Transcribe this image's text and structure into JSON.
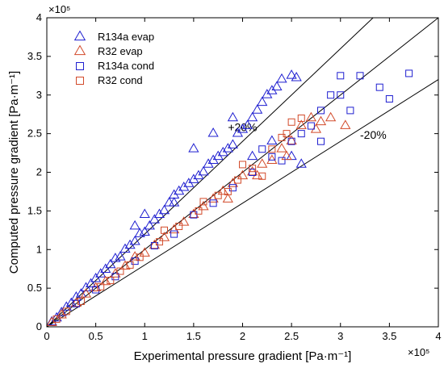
{
  "chart_data": {
    "type": "scatter",
    "xlabel": "Experimental pressure gradient [Pa·m⁻¹]",
    "ylabel": "Computed pressure gradient [Pa·m⁻¹]",
    "x_multiplier": "×10⁵",
    "y_multiplier": "×10⁵",
    "xlim": [
      0,
      4
    ],
    "ylim": [
      0,
      4
    ],
    "xticks": [
      "0",
      "0.5",
      "1",
      "1.5",
      "2",
      "2.5",
      "3",
      "3.5",
      "4"
    ],
    "yticks": [
      "0",
      "0.5",
      "1",
      "1.5",
      "2",
      "2.5",
      "3",
      "3.5",
      "4"
    ],
    "grid": false,
    "legend_position": "top-left",
    "reference_lines": [
      {
        "label": "+20%",
        "slope": 1.2
      },
      {
        "label": "",
        "slope": 1.0
      },
      {
        "label": "-20%",
        "slope": 0.8
      }
    ],
    "series": [
      {
        "name": "R134a evap",
        "marker": "triangle",
        "color": "#1f1fd0",
        "points": [
          [
            0.05,
            0.06
          ],
          [
            0.1,
            0.11
          ],
          [
            0.15,
            0.18
          ],
          [
            0.2,
            0.25
          ],
          [
            0.25,
            0.3
          ],
          [
            0.3,
            0.38
          ],
          [
            0.35,
            0.42
          ],
          [
            0.4,
            0.5
          ],
          [
            0.45,
            0.55
          ],
          [
            0.5,
            0.62
          ],
          [
            0.55,
            0.68
          ],
          [
            0.6,
            0.74
          ],
          [
            0.65,
            0.8
          ],
          [
            0.7,
            0.88
          ],
          [
            0.75,
            0.9
          ],
          [
            0.8,
            1.0
          ],
          [
            0.85,
            1.05
          ],
          [
            0.9,
            1.1
          ],
          [
            0.95,
            1.2
          ],
          [
            1.0,
            1.22
          ],
          [
            1.05,
            1.3
          ],
          [
            1.1,
            1.38
          ],
          [
            1.15,
            1.45
          ],
          [
            1.2,
            1.5
          ],
          [
            1.25,
            1.6
          ],
          [
            1.3,
            1.7
          ],
          [
            1.35,
            1.75
          ],
          [
            1.4,
            1.8
          ],
          [
            1.45,
            1.85
          ],
          [
            1.5,
            1.9
          ],
          [
            1.55,
            1.95
          ],
          [
            1.6,
            2.0
          ],
          [
            1.65,
            2.1
          ],
          [
            1.7,
            2.15
          ],
          [
            1.75,
            2.2
          ],
          [
            1.8,
            2.25
          ],
          [
            1.85,
            2.3
          ],
          [
            1.9,
            2.35
          ],
          [
            1.95,
            2.5
          ],
          [
            2.0,
            2.55
          ],
          [
            2.05,
            2.6
          ],
          [
            2.1,
            2.7
          ],
          [
            2.15,
            2.8
          ],
          [
            2.2,
            2.9
          ],
          [
            2.25,
            3.0
          ],
          [
            2.3,
            3.05
          ],
          [
            2.35,
            3.1
          ],
          [
            2.4,
            3.2
          ],
          [
            2.5,
            3.25
          ],
          [
            2.55,
            3.22
          ],
          [
            0.9,
            1.3
          ],
          [
            1.0,
            1.45
          ],
          [
            1.3,
            1.6
          ],
          [
            1.5,
            2.3
          ],
          [
            1.7,
            2.5
          ],
          [
            1.9,
            2.7
          ],
          [
            2.1,
            2.2
          ],
          [
            2.3,
            2.4
          ],
          [
            2.5,
            2.2
          ],
          [
            2.6,
            2.1
          ]
        ]
      },
      {
        "name": "R32 evap",
        "marker": "triangle",
        "color": "#d24a2a",
        "points": [
          [
            0.05,
            0.05
          ],
          [
            0.15,
            0.15
          ],
          [
            0.3,
            0.3
          ],
          [
            0.4,
            0.42
          ],
          [
            0.5,
            0.5
          ],
          [
            0.6,
            0.58
          ],
          [
            0.7,
            0.68
          ],
          [
            0.8,
            0.78
          ],
          [
            0.9,
            0.9
          ],
          [
            1.0,
            0.95
          ],
          [
            1.1,
            1.05
          ],
          [
            1.2,
            1.15
          ],
          [
            1.3,
            1.25
          ],
          [
            1.4,
            1.35
          ],
          [
            1.5,
            1.45
          ],
          [
            1.6,
            1.55
          ],
          [
            1.7,
            1.65
          ],
          [
            1.8,
            1.75
          ],
          [
            1.9,
            1.85
          ],
          [
            2.0,
            1.95
          ],
          [
            2.1,
            2.0
          ],
          [
            2.2,
            2.1
          ],
          [
            2.3,
            2.15
          ],
          [
            2.4,
            2.3
          ],
          [
            2.5,
            2.4
          ],
          [
            2.6,
            2.6
          ],
          [
            2.7,
            2.7
          ],
          [
            2.8,
            2.65
          ],
          [
            2.9,
            2.7
          ],
          [
            3.05,
            2.6
          ],
          [
            1.85,
            1.65
          ],
          [
            2.15,
            1.95
          ],
          [
            2.45,
            2.2
          ],
          [
            2.75,
            2.55
          ]
        ]
      },
      {
        "name": "R134a cond",
        "marker": "square",
        "color": "#1f1fd0",
        "points": [
          [
            0.3,
            0.3
          ],
          [
            0.5,
            0.48
          ],
          [
            0.7,
            0.65
          ],
          [
            0.9,
            0.85
          ],
          [
            1.1,
            1.05
          ],
          [
            1.3,
            1.2
          ],
          [
            1.5,
            1.45
          ],
          [
            1.7,
            1.6
          ],
          [
            1.9,
            1.8
          ],
          [
            2.1,
            2.0
          ],
          [
            2.3,
            2.2
          ],
          [
            2.5,
            2.4
          ],
          [
            2.6,
            2.5
          ],
          [
            2.7,
            2.6
          ],
          [
            2.8,
            2.8
          ],
          [
            2.9,
            3.0
          ],
          [
            3.0,
            3.0
          ],
          [
            3.1,
            2.8
          ],
          [
            3.2,
            3.25
          ],
          [
            3.4,
            3.1
          ],
          [
            3.5,
            2.95
          ],
          [
            3.7,
            3.28
          ],
          [
            2.4,
            2.15
          ],
          [
            2.2,
            2.3
          ],
          [
            3.0,
            3.25
          ],
          [
            2.8,
            2.4
          ]
        ]
      },
      {
        "name": "R32 cond",
        "marker": "square",
        "color": "#d24a2a",
        "points": [
          [
            0.1,
            0.1
          ],
          [
            0.2,
            0.2
          ],
          [
            0.35,
            0.33
          ],
          [
            0.55,
            0.52
          ],
          [
            0.75,
            0.72
          ],
          [
            0.95,
            0.9
          ],
          [
            1.15,
            1.1
          ],
          [
            1.35,
            1.3
          ],
          [
            1.55,
            1.5
          ],
          [
            1.75,
            1.7
          ],
          [
            1.95,
            1.9
          ],
          [
            2.1,
            2.05
          ],
          [
            2.3,
            2.3
          ],
          [
            2.45,
            2.5
          ],
          [
            2.6,
            2.7
          ],
          [
            2.5,
            2.65
          ],
          [
            2.4,
            2.45
          ],
          [
            2.0,
            2.1
          ],
          [
            1.6,
            1.62
          ],
          [
            1.2,
            1.25
          ],
          [
            0.85,
            0.8
          ],
          [
            0.65,
            0.6
          ],
          [
            2.2,
            1.95
          ],
          [
            1.85,
            1.75
          ]
        ]
      }
    ]
  }
}
